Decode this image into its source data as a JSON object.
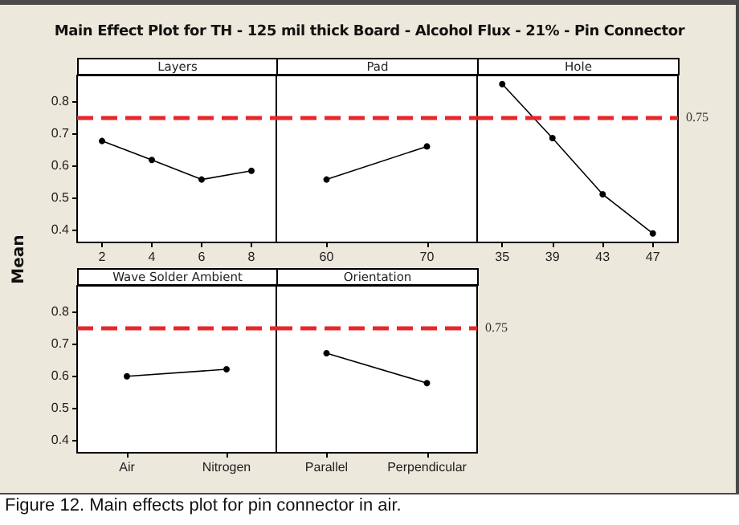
{
  "chart_data": [
    {
      "type": "other",
      "title": "Main Effect Plot for TH - 125 mil thick Board - Alcohol Flux - 21% - Pin Connector",
      "ylabel": "Mean",
      "annotations": [
        "Figure 12. Main effects plot for pin connector in air."
      ]
    },
    {
      "type": "line",
      "title": "Layers",
      "categories": [
        "2",
        "4",
        "6",
        "8"
      ],
      "values": [
        0.676,
        0.617,
        0.556,
        0.583
      ],
      "color": "#000000",
      "marker": "circle",
      "ylim": [
        0.36,
        0.88
      ],
      "yticks": [
        0.4,
        0.5,
        0.6,
        0.7,
        0.8
      ],
      "grid": false,
      "ref_lines": [
        {
          "axis": "y",
          "value": 0.75,
          "label": null,
          "color": "#e8262a",
          "line_style": "dashed"
        }
      ]
    },
    {
      "type": "line",
      "title": "Pad",
      "categories": [
        "60",
        "70"
      ],
      "values": [
        0.556,
        0.659
      ],
      "color": "#000000",
      "marker": "circle",
      "ylim": [
        0.36,
        0.88
      ],
      "yticks": [
        0.4,
        0.5,
        0.6,
        0.7,
        0.8
      ],
      "grid": false,
      "tick_labels": "x",
      "ref_lines": [
        {
          "axis": "y",
          "value": 0.75,
          "label": null,
          "color": "#e8262a",
          "line_style": "dashed"
        }
      ]
    },
    {
      "type": "line",
      "title": "Hole",
      "categories": [
        "35",
        "39",
        "43",
        "47"
      ],
      "values": [
        0.853,
        0.685,
        0.51,
        0.388
      ],
      "color": "#000000",
      "marker": "circle",
      "ylim": [
        0.36,
        0.88
      ],
      "yticks": [
        0.4,
        0.5,
        0.6,
        0.7,
        0.8
      ],
      "grid": false,
      "tick_labels": "x",
      "ref_lines": [
        {
          "axis": "y",
          "value": 0.75,
          "label": "0.75",
          "color": "#e8262a",
          "line_style": "dashed"
        }
      ]
    },
    {
      "type": "line",
      "title": "Wave Solder Ambient",
      "categories": [
        "Air",
        "Nitrogen"
      ],
      "values": [
        0.598,
        0.62
      ],
      "color": "#000000",
      "marker": "circle",
      "ylim": [
        0.36,
        0.88
      ],
      "yticks": [
        0.4,
        0.5,
        0.6,
        0.7,
        0.8
      ],
      "grid": false,
      "ref_lines": [
        {
          "axis": "y",
          "value": 0.75,
          "label": null,
          "color": "#e8262a",
          "line_style": "dashed"
        }
      ]
    },
    {
      "type": "line",
      "title": "Orientation",
      "categories": [
        "Parallel",
        "Perpendicular"
      ],
      "values": [
        0.67,
        0.577
      ],
      "color": "#000000",
      "marker": "circle",
      "ylim": [
        0.36,
        0.88
      ],
      "yticks": [
        0.4,
        0.5,
        0.6,
        0.7,
        0.8
      ],
      "grid": false,
      "tick_labels": "x",
      "ref_lines": [
        {
          "axis": "y",
          "value": 0.75,
          "label": "0.75",
          "color": "#e8262a",
          "line_style": "dashed"
        }
      ]
    }
  ]
}
